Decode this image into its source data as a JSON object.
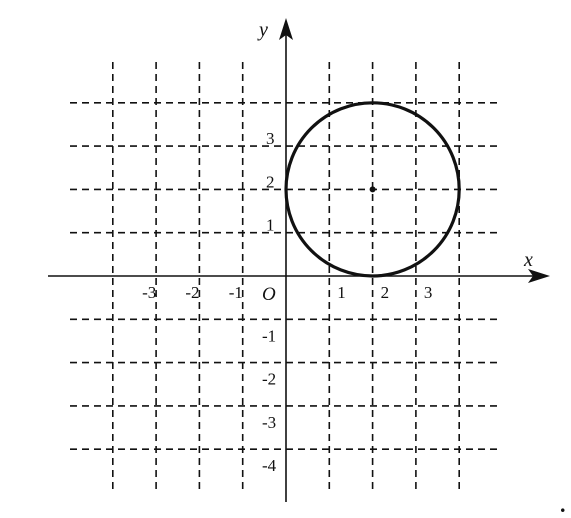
{
  "axes": {
    "x_name": "x",
    "y_name": "y",
    "origin_label": "O",
    "x_range": [
      -4,
      6
    ],
    "y_range": [
      -5,
      6
    ]
  },
  "grid": {
    "style": "dashed",
    "x_lines": [
      -4,
      -3,
      -2,
      -1,
      1,
      2,
      3,
      4
    ],
    "y_lines": [
      -4,
      -3,
      -2,
      -1,
      1,
      2,
      3,
      4
    ],
    "x_extent": [
      -5,
      5
    ],
    "y_extent": [
      -5,
      4
    ]
  },
  "ticks": {
    "x": [
      {
        "value": -3,
        "label": "-3"
      },
      {
        "value": -2,
        "label": "-2"
      },
      {
        "value": -1,
        "label": "-1"
      },
      {
        "value": 1,
        "label": "1"
      },
      {
        "value": 2,
        "label": "2"
      },
      {
        "value": 3,
        "label": "3"
      }
    ],
    "y": [
      {
        "value": 3,
        "label": "3"
      },
      {
        "value": 2,
        "label": "2"
      },
      {
        "value": 1,
        "label": "1"
      },
      {
        "value": -1,
        "label": "-1"
      },
      {
        "value": -2,
        "label": "-2"
      },
      {
        "value": -3,
        "label": "-3"
      },
      {
        "value": -4,
        "label": "-4"
      }
    ]
  },
  "circle": {
    "center": [
      2,
      2
    ],
    "radius": 2,
    "show_center_dot": true
  },
  "trailing_mark": "."
}
